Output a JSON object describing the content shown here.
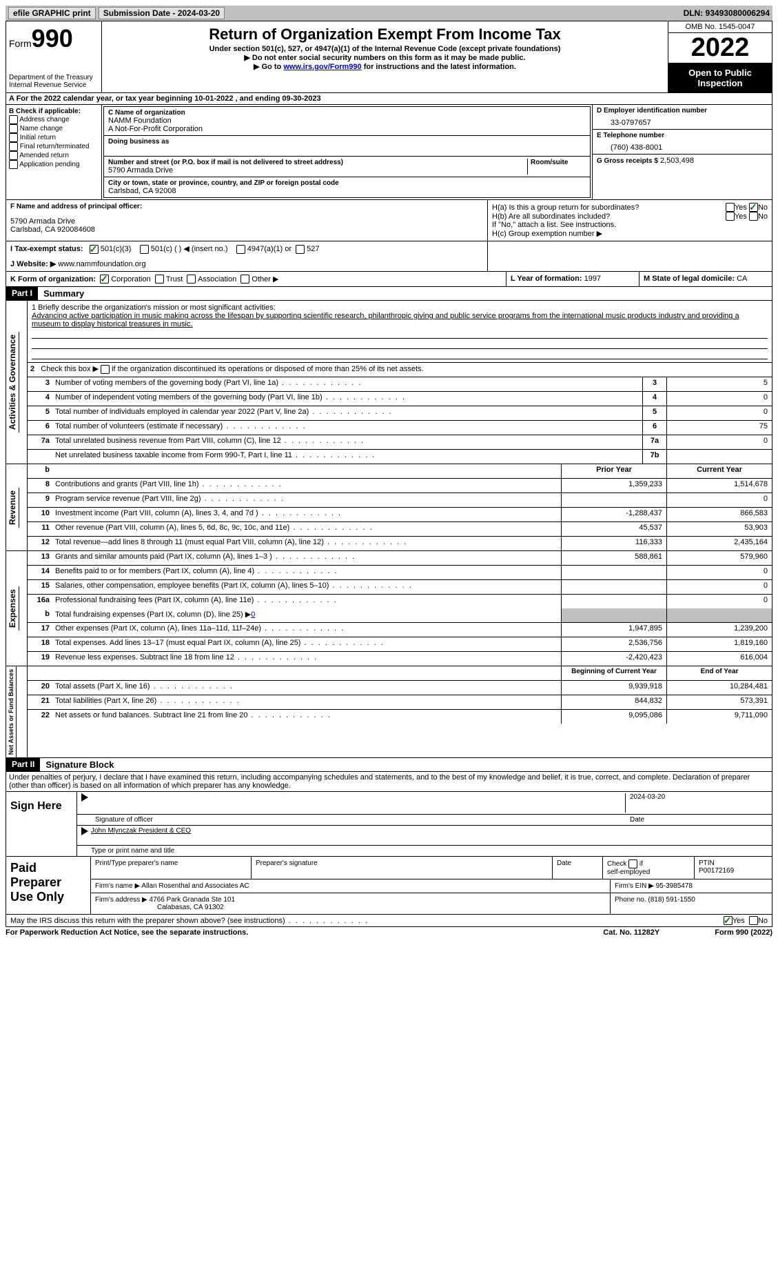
{
  "topbar": {
    "efile": "efile GRAPHIC print",
    "submission_label": "Submission Date - 2024-03-20",
    "dln_label": "DLN: 93493080006294"
  },
  "header": {
    "form_label": "Form",
    "form_number": "990",
    "dept": "Department of the Treasury",
    "irs": "Internal Revenue Service",
    "title": "Return of Organization Exempt From Income Tax",
    "subtitle": "Under section 501(c), 527, or 4947(a)(1) of the Internal Revenue Code (except private foundations)",
    "note1": "▶ Do not enter social security numbers on this form as it may be made public.",
    "note2_pre": "▶ Go to ",
    "note2_link": "www.irs.gov/Form990",
    "note2_post": " for instructions and the latest information.",
    "omb": "OMB No. 1545-0047",
    "year": "2022",
    "open_public": "Open to Public Inspection"
  },
  "row_a": "A For the 2022 calendar year, or tax year beginning 10-01-2022    , and ending 09-30-2023",
  "section_b": {
    "heading": "B Check if applicable:",
    "items": [
      "Address change",
      "Name change",
      "Initial return",
      "Final return/terminated",
      "Amended return",
      "Application pending"
    ]
  },
  "section_c": {
    "name_label": "C Name of organization",
    "name": "NAMM Foundation",
    "name2": "A Not-For-Profit Corporation",
    "dba_label": "Doing business as",
    "addr_label": "Number and street (or P.O. box if mail is not delivered to street address)",
    "room_label": "Room/suite",
    "addr": "5790 Armada Drive",
    "city_label": "City or town, state or province, country, and ZIP or foreign postal code",
    "city": "Carlsbad, CA  92008"
  },
  "section_d": {
    "ein_label": "D Employer identification number",
    "ein": "33-0797657",
    "tel_label": "E Telephone number",
    "tel": "(760) 438-8001",
    "gross_label": "G Gross receipts $",
    "gross": "2,503,498"
  },
  "section_f": {
    "label": "F  Name and address of principal officer:",
    "addr1": "5790 Armada Drive",
    "addr2": "Carlsbad, CA  920084608"
  },
  "section_h": {
    "ha": "H(a)  Is this a group return for subordinates?",
    "hb": "H(b)  Are all subordinates included?",
    "hb_note": "If \"No,\" attach a list. See instructions.",
    "hc": "H(c)  Group exemption number ▶",
    "yes": "Yes",
    "no": "No"
  },
  "row_i": {
    "label": "I   Tax-exempt status:",
    "opt1": "501(c)(3)",
    "opt2": "501(c) (    ) ◀ (insert no.)",
    "opt3": "4947(a)(1) or",
    "opt4": "527"
  },
  "row_j": {
    "label": "J   Website: ▶",
    "value": "www.nammfoundation.org"
  },
  "row_k": {
    "label": "K Form of organization:",
    "corp": "Corporation",
    "trust": "Trust",
    "assoc": "Association",
    "other": "Other ▶"
  },
  "row_l": {
    "label": "L Year of formation:",
    "value": "1997"
  },
  "row_m": {
    "label": "M State of legal domicile:",
    "value": "CA"
  },
  "part1": {
    "header": "Part I",
    "title": "Summary"
  },
  "mission": {
    "label": "1   Briefly describe the organization's mission or most significant activities:",
    "text": "Advancing active participation in music making across the lifespan by supporting scientific research, philanthropic giving and public service programs from the international music products industry and providing a museum to display historical treasures in music."
  },
  "line2": "2   Check this box ▶         if the organization discontinued its operations or disposed of more than 25% of its net assets.",
  "activities_label": "Activities & Governance",
  "revenue_label": "Revenue",
  "expenses_label": "Expenses",
  "netassets_label": "Net Assets or Fund Balances",
  "gov_rows": [
    {
      "n": "3",
      "d": "Number of voting members of the governing body (Part VI, line 1a)",
      "box": "3",
      "v": "5"
    },
    {
      "n": "4",
      "d": "Number of independent voting members of the governing body (Part VI, line 1b)",
      "box": "4",
      "v": "0"
    },
    {
      "n": "5",
      "d": "Total number of individuals employed in calendar year 2022 (Part V, line 2a)",
      "box": "5",
      "v": "0"
    },
    {
      "n": "6",
      "d": "Total number of volunteers (estimate if necessary)",
      "box": "6",
      "v": "75"
    },
    {
      "n": "7a",
      "d": "Total unrelated business revenue from Part VIII, column (C), line 12",
      "box": "7a",
      "v": "0"
    },
    {
      "n": "",
      "d": "Net unrelated business taxable income from Form 990-T, Part I, line 11",
      "box": "7b",
      "v": ""
    }
  ],
  "col_headers": {
    "b": "b",
    "prior": "Prior Year",
    "current": "Current Year"
  },
  "rev_rows": [
    {
      "n": "8",
      "d": "Contributions and grants (Part VIII, line 1h)",
      "p": "1,359,233",
      "c": "1,514,678"
    },
    {
      "n": "9",
      "d": "Program service revenue (Part VIII, line 2g)",
      "p": "",
      "c": "0"
    },
    {
      "n": "10",
      "d": "Investment income (Part VIII, column (A), lines 3, 4, and 7d )",
      "p": "-1,288,437",
      "c": "866,583"
    },
    {
      "n": "11",
      "d": "Other revenue (Part VIII, column (A), lines 5, 6d, 8c, 9c, 10c, and 11e)",
      "p": "45,537",
      "c": "53,903"
    },
    {
      "n": "12",
      "d": "Total revenue—add lines 8 through 11 (must equal Part VIII, column (A), line 12)",
      "p": "116,333",
      "c": "2,435,164"
    }
  ],
  "exp_rows": [
    {
      "n": "13",
      "d": "Grants and similar amounts paid (Part IX, column (A), lines 1–3 )",
      "p": "588,861",
      "c": "579,960"
    },
    {
      "n": "14",
      "d": "Benefits paid to or for members (Part IX, column (A), line 4)",
      "p": "",
      "c": "0"
    },
    {
      "n": "15",
      "d": "Salaries, other compensation, employee benefits (Part IX, column (A), lines 5–10)",
      "p": "",
      "c": "0"
    },
    {
      "n": "16a",
      "d": "Professional fundraising fees (Part IX, column (A), line 11e)",
      "p": "",
      "c": "0"
    }
  ],
  "line16b": {
    "n": "b",
    "d": "Total fundraising expenses (Part IX, column (D), line 25) ▶",
    "v": "0"
  },
  "exp_rows2": [
    {
      "n": "17",
      "d": "Other expenses (Part IX, column (A), lines 11a–11d, 11f–24e)",
      "p": "1,947,895",
      "c": "1,239,200"
    },
    {
      "n": "18",
      "d": "Total expenses. Add lines 13–17 (must equal Part IX, column (A), line 25)",
      "p": "2,536,756",
      "c": "1,819,160"
    },
    {
      "n": "19",
      "d": "Revenue less expenses. Subtract line 18 from line 12",
      "p": "-2,420,423",
      "c": "616,004"
    }
  ],
  "net_headers": {
    "begin": "Beginning of Current Year",
    "end": "End of Year"
  },
  "net_rows": [
    {
      "n": "20",
      "d": "Total assets (Part X, line 16)",
      "p": "9,939,918",
      "c": "10,284,481"
    },
    {
      "n": "21",
      "d": "Total liabilities (Part X, line 26)",
      "p": "844,832",
      "c": "573,391"
    },
    {
      "n": "22",
      "d": "Net assets or fund balances. Subtract line 21 from line 20",
      "p": "9,095,086",
      "c": "9,711,090"
    }
  ],
  "part2": {
    "header": "Part II",
    "title": "Signature Block"
  },
  "penalties": "Under penalties of perjury, I declare that I have examined this return, including accompanying schedules and statements, and to the best of my knowledge and belief, it is true, correct, and complete. Declaration of preparer (other than officer) is based on all information of which preparer has any knowledge.",
  "sign": {
    "here": "Sign Here",
    "sig_officer": "Signature of officer",
    "date": "Date",
    "date_val": "2024-03-20",
    "name": "John Mlynczak  President & CEO",
    "name_label": "Type or print name and title"
  },
  "prep": {
    "header": "Paid Preparer Use Only",
    "c1": "Print/Type preparer's name",
    "c2": "Preparer's signature",
    "c3": "Date",
    "c4_label": "Check          if self-employed",
    "c5_label": "PTIN",
    "c5": "P00172169",
    "firm_name_label": "Firm's name      ▶",
    "firm_name": "Allan Rosenthal and Associates AC",
    "firm_ein_label": "Firm's EIN ▶",
    "firm_ein": "95-3985478",
    "firm_addr_label": "Firm's address ▶",
    "firm_addr1": "4766 Park Granada Ste 101",
    "firm_addr2": "Calabasas, CA  91302",
    "phone_label": "Phone no.",
    "phone": "(818) 591-1550"
  },
  "discuss": {
    "q": "May the IRS discuss this return with the preparer shown above? (see instructions)",
    "yes": "Yes",
    "no": "No"
  },
  "footer": {
    "left": "For Paperwork Reduction Act Notice, see the separate instructions.",
    "mid": "Cat. No. 11282Y",
    "right": "Form 990 (2022)"
  }
}
